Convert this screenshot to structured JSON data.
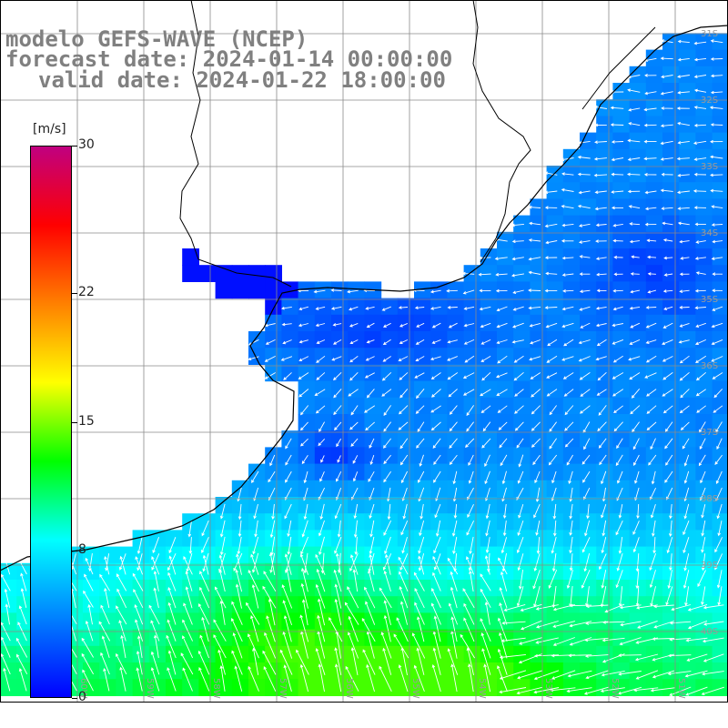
{
  "title": {
    "line1": "modelo GEFS-WAVE (NCEP)",
    "line2": "forecast date: 2024-01-14 00:00:00",
    "line3": "valid date: 2024-01-22 18:00:00"
  },
  "colorbar": {
    "unit": "[m/s]",
    "ticks": [
      "30",
      "22",
      "15",
      "8",
      "0"
    ],
    "tick_values": [
      30,
      22,
      15,
      8,
      0
    ],
    "range": [
      0,
      30
    ],
    "colors": [
      "#0000ff",
      "#0080ff",
      "#00ffff",
      "#00ff00",
      "#ffff00",
      "#ff8000",
      "#ff0000",
      "#c00080"
    ]
  },
  "map": {
    "lat_labels": [
      "31S",
      "32S",
      "33S",
      "34S",
      "35S",
      "36S",
      "37S",
      "38S",
      "39S",
      "40S"
    ],
    "lon_labels": [
      "60W",
      "59W",
      "58W",
      "57W",
      "56W",
      "55W",
      "54W",
      "53W",
      "52W",
      "51W"
    ],
    "land_color": "#ffffff",
    "grid_color": "#8a8a8a",
    "coast_color": "#000000",
    "arrow_color": "#ffffff"
  }
}
